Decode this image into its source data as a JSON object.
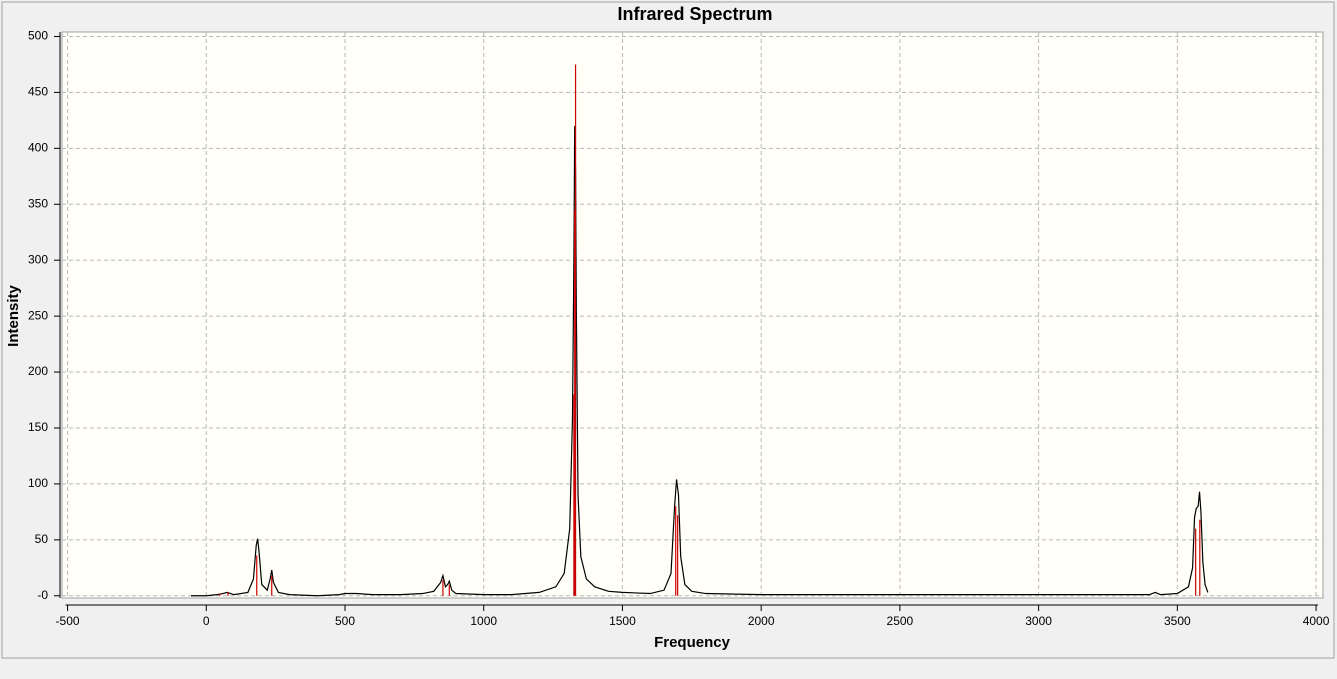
{
  "chart_data": {
    "type": "line",
    "title": "Infrared Spectrum",
    "xlabel": "Frequency",
    "ylabel": "Intensity",
    "xlim": [
      -520,
      4025
    ],
    "ylim": [
      -2,
      504
    ],
    "xticks": [
      -500,
      0,
      500,
      1000,
      1500,
      2000,
      2500,
      3000,
      3500,
      4000
    ],
    "yticks": [
      {
        "value": 0,
        "label": "-0"
      },
      50,
      100,
      150,
      200,
      250,
      300,
      350,
      400,
      450,
      500
    ],
    "grid": true,
    "series": [
      {
        "type": "line",
        "color": "#000000",
        "x": [
          -55,
          0,
          40,
          60,
          75,
          100,
          150,
          170,
          180,
          185,
          190,
          200,
          220,
          230,
          236,
          242,
          260,
          300,
          400,
          480,
          500,
          540,
          600,
          700,
          780,
          820,
          845,
          853,
          862,
          870,
          876,
          885,
          900,
          1000,
          1100,
          1200,
          1260,
          1290,
          1310,
          1320,
          1325,
          1328,
          1331,
          1334,
          1340,
          1350,
          1370,
          1400,
          1450,
          1500,
          1600,
          1650,
          1675,
          1688,
          1695,
          1702,
          1710,
          1725,
          1750,
          1800,
          2000,
          2500,
          3000,
          3400,
          3420,
          3440,
          3500,
          3540,
          3555,
          3562,
          3568,
          3575,
          3580,
          3585,
          3592,
          3600,
          3610
        ],
        "values": [
          0,
          0,
          1,
          2,
          3,
          1,
          3,
          15,
          45,
          51,
          40,
          10,
          5,
          15,
          23,
          12,
          3,
          1,
          0,
          1,
          2,
          2,
          1,
          1,
          2,
          4,
          12,
          18,
          8,
          10,
          13,
          5,
          2,
          1,
          1,
          3,
          8,
          20,
          60,
          160,
          300,
          420,
          380,
          250,
          90,
          35,
          15,
          8,
          4,
          3,
          2,
          5,
          20,
          80,
          104,
          90,
          35,
          10,
          4,
          2,
          1,
          1,
          1,
          1,
          3,
          1,
          2,
          8,
          25,
          70,
          78,
          80,
          93,
          75,
          30,
          10,
          3
        ]
      },
      {
        "type": "stick",
        "color": "#cc0000",
        "x": [
          48,
          78,
          182,
          236,
          853,
          876,
          1325,
          1328,
          1331,
          1692,
          1699,
          3566,
          3581
        ],
        "values": [
          2,
          3,
          36,
          18,
          14,
          10,
          180,
          345,
          475,
          80,
          72,
          60,
          68
        ]
      }
    ]
  }
}
